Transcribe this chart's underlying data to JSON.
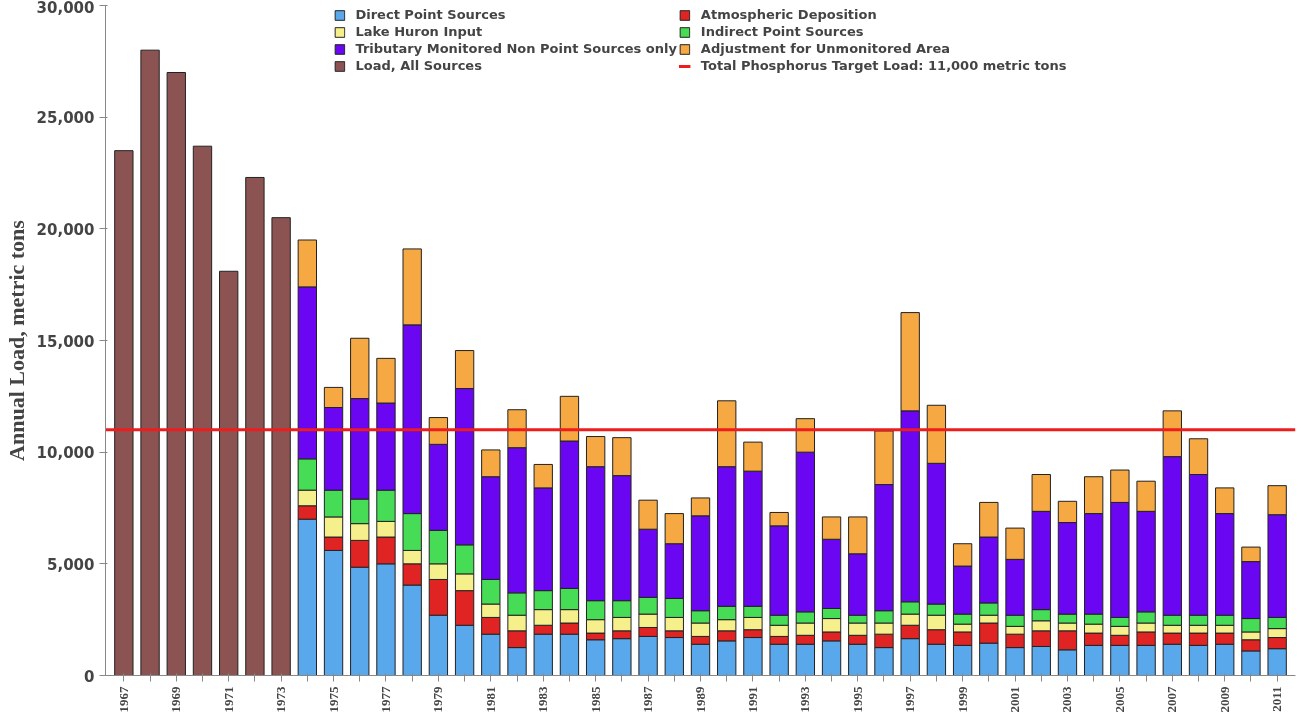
{
  "chart_data": {
    "type": "bar",
    "stacked": true,
    "ylabel": "Annual Load, metric tons",
    "categories": [
      "1967",
      null,
      "1969",
      null,
      "1971",
      null,
      "1973",
      null,
      "1975",
      null,
      "1977",
      null,
      "1979",
      null,
      "1981",
      null,
      "1983",
      null,
      "1985",
      null,
      "1987",
      null,
      "1989",
      null,
      "1991",
      null,
      "1993",
      null,
      "1995",
      null,
      "1997",
      null,
      "1999",
      null,
      "2001",
      null,
      "2003",
      null,
      "2005",
      null,
      "2007",
      null,
      "2009",
      null,
      "2011"
    ],
    "ylim": [
      0,
      30000
    ],
    "yticks": [
      {
        "value": 0,
        "label": "0"
      },
      {
        "value": 5000,
        "label": "5,000"
      },
      {
        "value": 10000,
        "label": "10,000"
      },
      {
        "value": 15000,
        "label": "15,000"
      },
      {
        "value": 20000,
        "label": "20,000"
      },
      {
        "value": 25000,
        "label": "25,000"
      },
      {
        "value": 30000,
        "label": "30,000"
      }
    ],
    "grid": false,
    "legend": "top",
    "series": [
      {
        "name": "Direct Point Sources",
        "color": "#5aa8ec",
        "values": [
          null,
          null,
          null,
          null,
          null,
          null,
          null,
          7000,
          5600,
          4850,
          5000,
          4050,
          2700,
          2250,
          1850,
          1250,
          1850,
          1850,
          1600,
          1650,
          1750,
          1700,
          1400,
          1550,
          1700,
          1400,
          1400,
          1550,
          1400,
          1250,
          1650,
          1400,
          1350,
          1450,
          1250,
          1300,
          1150,
          1350,
          1350,
          1350,
          1400,
          1350,
          1400,
          1100,
          1200
        ]
      },
      {
        "name": "Atmospheric Deposition",
        "color": "#e02424",
        "values": [
          null,
          null,
          null,
          null,
          null,
          null,
          null,
          600,
          600,
          1200,
          1200,
          950,
          1600,
          1550,
          750,
          750,
          400,
          500,
          300,
          350,
          400,
          300,
          350,
          450,
          350,
          350,
          400,
          400,
          400,
          600,
          600,
          650,
          600,
          900,
          600,
          700,
          850,
          550,
          450,
          600,
          500,
          550,
          500,
          500,
          500
        ]
      },
      {
        "name": "Lake Huron Input",
        "color": "#f6f08c",
        "values": [
          null,
          null,
          null,
          null,
          null,
          null,
          null,
          700,
          900,
          750,
          700,
          600,
          700,
          750,
          600,
          700,
          700,
          600,
          600,
          600,
          600,
          600,
          600,
          500,
          550,
          500,
          550,
          600,
          550,
          500,
          500,
          650,
          350,
          350,
          350,
          450,
          350,
          400,
          400,
          400,
          350,
          350,
          350,
          350,
          400
        ]
      },
      {
        "name": "Indirect Point Sources",
        "color": "#46dc56",
        "values": [
          null,
          null,
          null,
          null,
          null,
          null,
          null,
          1400,
          1200,
          1100,
          1400,
          1650,
          1500,
          1300,
          1100,
          1000,
          850,
          950,
          850,
          750,
          750,
          850,
          550,
          600,
          500,
          450,
          500,
          450,
          350,
          550,
          550,
          500,
          450,
          550,
          500,
          500,
          400,
          450,
          400,
          500,
          450,
          450,
          450,
          600,
          500
        ]
      },
      {
        "name": "Tributary Monitored Non Point Sources only",
        "color": "#6a06f2",
        "values": [
          null,
          null,
          null,
          null,
          null,
          null,
          null,
          7700,
          3700,
          4500,
          3900,
          8450,
          3850,
          7000,
          4600,
          6500,
          4600,
          6600,
          6000,
          5600,
          3050,
          2450,
          4250,
          6250,
          6050,
          4000,
          7150,
          3100,
          2750,
          5650,
          8550,
          6300,
          2150,
          2950,
          2500,
          4400,
          4100,
          4500,
          5150,
          4500,
          7100,
          6300,
          4550,
          2550,
          4600
        ]
      },
      {
        "name": "Adjustment for Unmonitored Area",
        "color": "#f6a843",
        "values": [
          null,
          null,
          null,
          null,
          null,
          null,
          null,
          2100,
          900,
          2700,
          2000,
          3400,
          1200,
          1700,
          1200,
          1700,
          1050,
          2000,
          1350,
          1700,
          1300,
          1350,
          800,
          2950,
          1300,
          600,
          1500,
          1000,
          1650,
          2400,
          4400,
          2600,
          1000,
          1550,
          1400,
          1650,
          950,
          1650,
          1450,
          1350,
          2050,
          1600,
          1150,
          650,
          1300
        ]
      },
      {
        "name": "Load, All Sources",
        "color": "#8c5353",
        "values": [
          23500,
          28000,
          27000,
          23700,
          18100,
          22300,
          20500,
          null,
          null,
          null,
          null,
          null,
          null,
          null,
          null,
          null,
          null,
          null,
          null,
          null,
          null,
          null,
          null,
          null,
          null,
          null,
          null,
          null,
          null,
          null,
          null,
          null,
          null,
          null,
          null,
          null,
          null,
          null,
          null,
          null,
          null,
          null,
          null,
          null,
          null
        ]
      }
    ],
    "ref_lines": [
      {
        "axis": "y",
        "value": 11000,
        "label": "Total Phosphorus Target Load: 11,000 metric tons",
        "color": "#ee1c1c"
      }
    ]
  }
}
